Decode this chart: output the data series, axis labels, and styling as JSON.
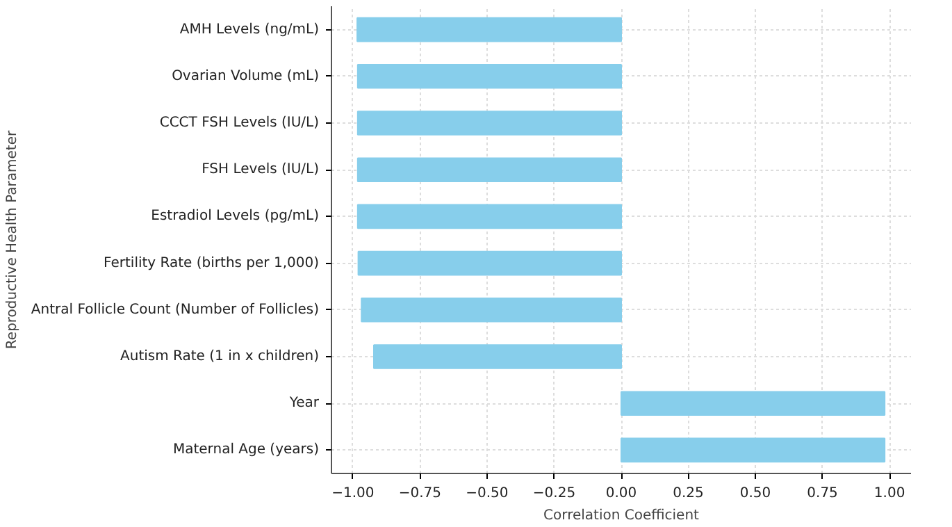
{
  "chart_data": {
    "type": "bar",
    "orientation": "horizontal",
    "xlabel": "Correlation Coefficient",
    "ylabel": "Reproductive Health Parameter",
    "categories": [
      "AMH Levels (ng/mL)",
      "Ovarian Volume (mL)",
      "CCCT FSH Levels (IU/L)",
      "FSH Levels (IU/L)",
      "Estradiol Levels (pg/mL)",
      "Fertility Rate (births per 1,000)",
      "Antral Follicle Count (Number of Follicles)",
      "Autism Rate (1 in x children)",
      "Year",
      "Maternal Age (years)"
    ],
    "values": [
      -0.984,
      -0.982,
      -0.982,
      -0.982,
      -0.982,
      -0.98,
      -0.968,
      -0.922,
      0.982,
      0.982
    ],
    "color": "#87ceeb",
    "xlim": [
      -1.08,
      1.08
    ],
    "xticks": [
      {
        "value": -1.0,
        "label": "−1.00"
      },
      {
        "value": -0.75,
        "label": "−0.75"
      },
      {
        "value": -0.5,
        "label": "−0.50"
      },
      {
        "value": -0.25,
        "label": "−0.25"
      },
      {
        "value": 0.0,
        "label": "0.00"
      },
      {
        "value": 0.25,
        "label": "0.25"
      },
      {
        "value": 0.5,
        "label": "0.50"
      },
      {
        "value": 0.75,
        "label": "0.75"
      },
      {
        "value": 1.0,
        "label": "1.00"
      }
    ],
    "grid": true
  }
}
